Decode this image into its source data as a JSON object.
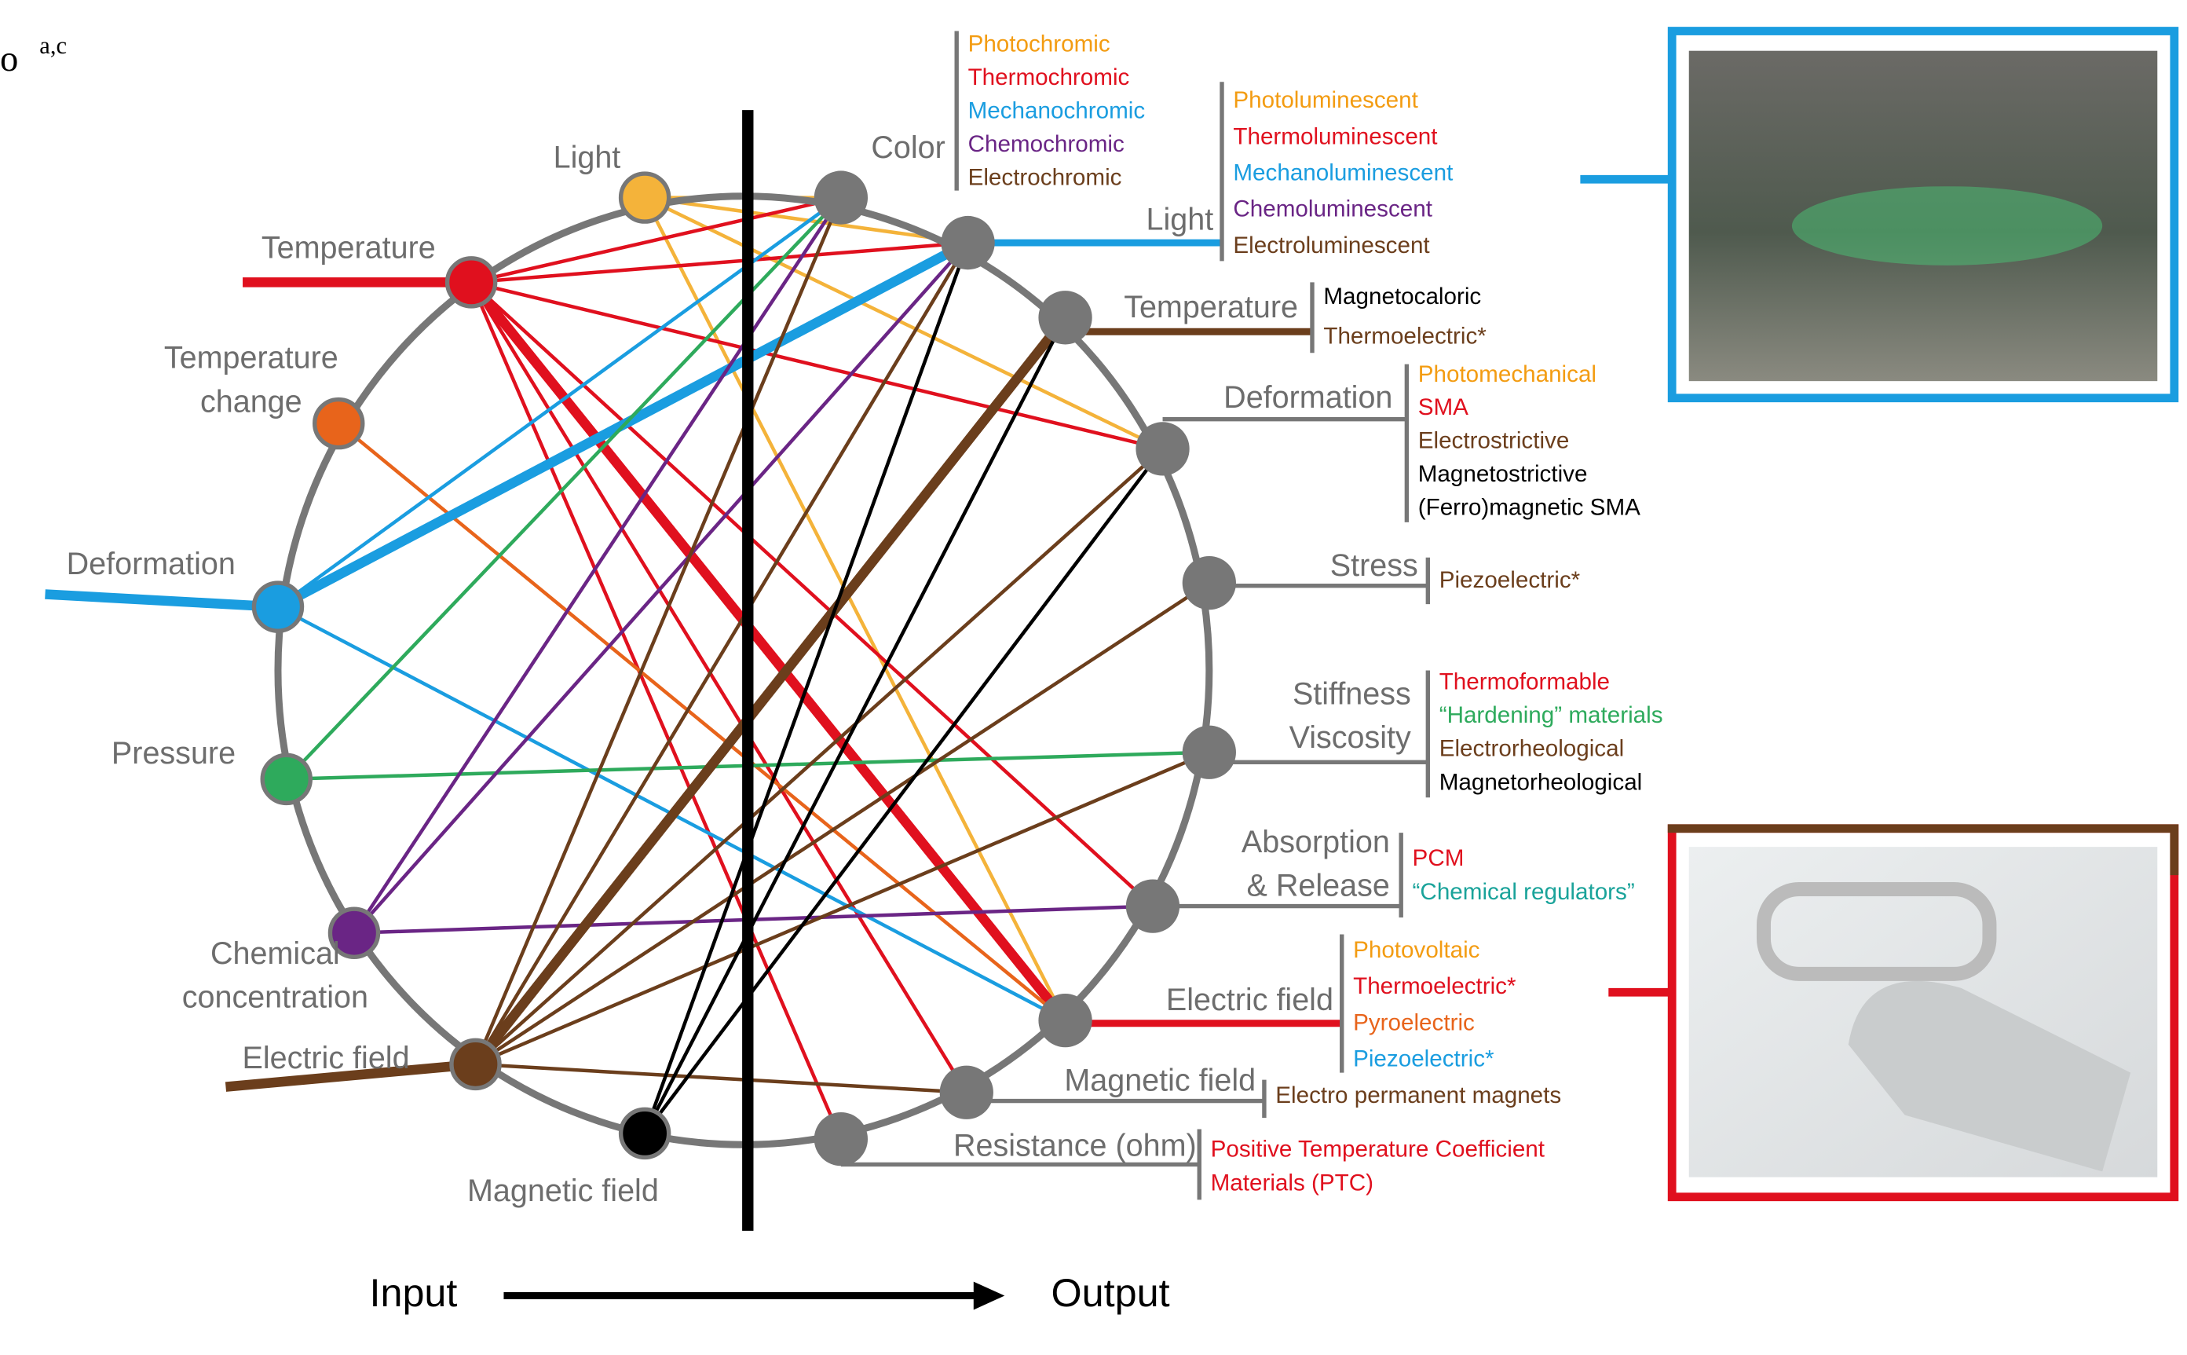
{
  "corner_label": "a,c",
  "input_nodes": [
    {
      "lines": [
        "Light"
      ],
      "color": "#f4b33a"
    },
    {
      "lines": [
        "Temperature"
      ],
      "color": "#e0101e"
    },
    {
      "lines": [
        "Temperature",
        "change"
      ],
      "color": "#e8641b"
    },
    {
      "lines": [
        "Deformation"
      ],
      "color": "#1a9de0"
    },
    {
      "lines": [
        "Pressure"
      ],
      "color": "#2eaa5c"
    },
    {
      "lines": [
        "Chemical",
        "concentration"
      ],
      "color": "#6a2585"
    },
    {
      "lines": [
        "Electric field"
      ],
      "color": "#6b3e1c"
    },
    {
      "lines": [
        "Magnetic field"
      ],
      "color": "#000000"
    }
  ],
  "output_nodes": [
    {
      "lines": [
        "Color"
      ],
      "materials": [
        {
          "text": "Photochromic",
          "color": "#f39c12"
        },
        {
          "text": "Thermochromic",
          "color": "#e0101e"
        },
        {
          "text": "Mechanochromic",
          "color": "#1a9de0"
        },
        {
          "text": "Chemochromic",
          "color": "#6a2585"
        },
        {
          "text": "Electrochromic",
          "color": "#6b3e1c"
        }
      ]
    },
    {
      "lines": [
        "Light"
      ],
      "materials": [
        {
          "text": "Photoluminescent",
          "color": "#f39c12"
        },
        {
          "text": "Thermoluminescent",
          "color": "#e0101e"
        },
        {
          "text": "Mechanoluminescent",
          "color": "#1a9de0",
          "emphasis": true
        },
        {
          "text": "Chemoluminescent",
          "color": "#6a2585"
        },
        {
          "text": "Electroluminescent",
          "color": "#6b3e1c"
        }
      ]
    },
    {
      "lines": [
        "Temperature"
      ],
      "materials": [
        {
          "text": "Magnetocaloric",
          "color": "#000000"
        },
        {
          "text": "Thermoelectric*",
          "color": "#6b3e1c",
          "emphasis": true
        }
      ]
    },
    {
      "lines": [
        "Deformation"
      ],
      "materials": [
        {
          "text": "Photomechanical",
          "color": "#f39c12"
        },
        {
          "text": "SMA",
          "color": "#e0101e"
        },
        {
          "text": "Electrostrictive",
          "color": "#6b3e1c"
        },
        {
          "text": "Magnetostrictive",
          "color": "#000000"
        },
        {
          "text": "(Ferro)magnetic SMA",
          "color": "#000000"
        }
      ]
    },
    {
      "lines": [
        "Stress"
      ],
      "materials": [
        {
          "text": "Piezoelectric*",
          "color": "#6b3e1c"
        }
      ]
    },
    {
      "lines": [
        "Stiffness",
        "Viscosity"
      ],
      "materials": [
        {
          "text": "Thermoformable",
          "color": "#e0101e"
        },
        {
          "text": "“Hardening” materials",
          "color": "#2eaa5c"
        },
        {
          "text": "Electrorheological",
          "color": "#6b3e1c"
        },
        {
          "text": "Magnetorheological",
          "color": "#000000"
        }
      ]
    },
    {
      "lines": [
        "Absorption",
        "& Release"
      ],
      "materials": [
        {
          "text": "PCM",
          "color": "#e0101e"
        },
        {
          "text": "“Chemical regulators”",
          "color": "#1aa39a"
        }
      ]
    },
    {
      "lines": [
        "Electric field"
      ],
      "materials": [
        {
          "text": "Photovoltaic",
          "color": "#f39c12"
        },
        {
          "text": "Thermoelectric*",
          "color": "#e0101e",
          "emphasis": true
        },
        {
          "text": "Pyroelectric",
          "color": "#e8641b"
        },
        {
          "text": "Piezoelectric*",
          "color": "#1a9de0"
        }
      ]
    },
    {
      "lines": [
        "Magnetic field"
      ],
      "materials": [
        {
          "text": "Electro permanent magnets",
          "color": "#6b3e1c"
        }
      ]
    },
    {
      "lines": [
        "Resistance (ohm)"
      ],
      "materials": [
        {
          "text": "Positive Temperature Coefficient",
          "color": "#e0101e"
        },
        {
          "text": "Materials (PTC)",
          "color": "#e0101e"
        }
      ]
    }
  ],
  "axis": {
    "input": "Input",
    "output": "Output"
  }
}
